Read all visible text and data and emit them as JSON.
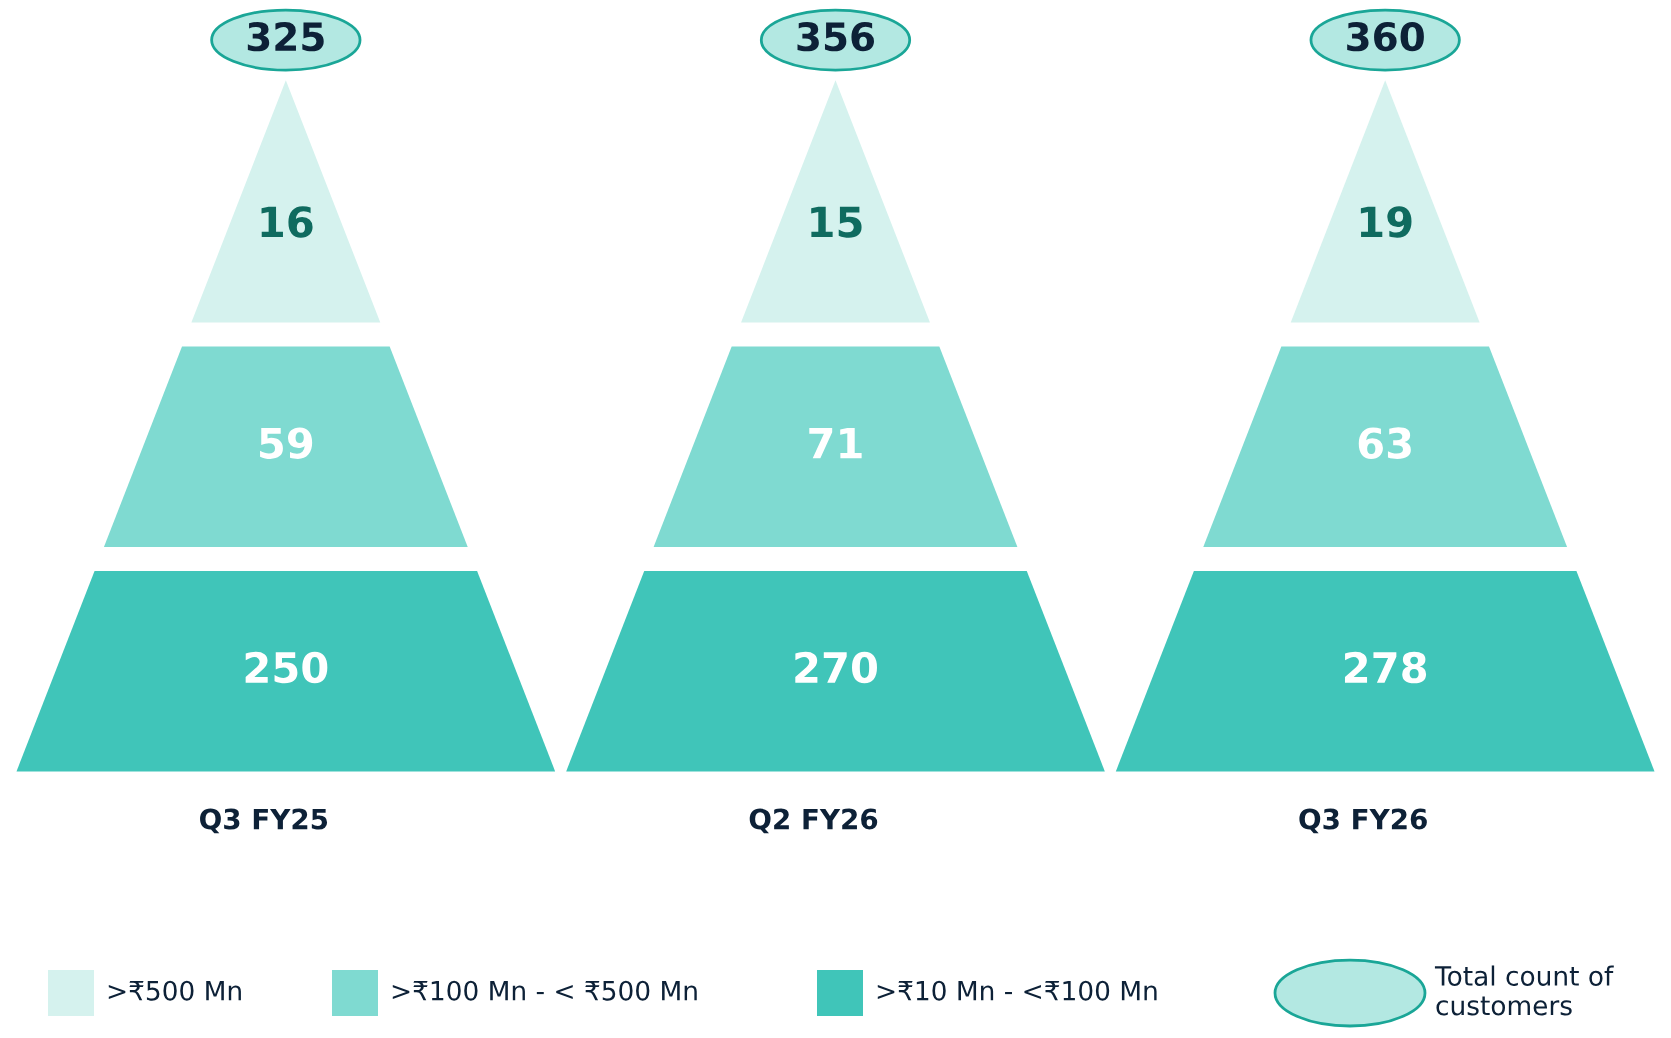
{
  "chart_data": {
    "type": "other",
    "categories": [
      "Q3 FY25",
      "Q2 FY26",
      "Q3 FY26"
    ],
    "series": [
      {
        "name": ">₹10 Mn - <₹100 Mn",
        "color": "#40c5b9",
        "values": [
          250,
          270,
          278
        ]
      },
      {
        "name": ">₹100 Mn - < ₹500 Mn",
        "color": "#7fdad1",
        "values": [
          59,
          71,
          63
        ]
      },
      {
        "name": ">₹500 Mn",
        "color": "#d5f2ee",
        "values": [
          16,
          15,
          19
        ]
      }
    ],
    "totals": [
      "325",
      "356",
      "360"
    ],
    "annotations": [
      "Total count of customers"
    ],
    "data_labels": true,
    "legend": "bottom"
  }
}
